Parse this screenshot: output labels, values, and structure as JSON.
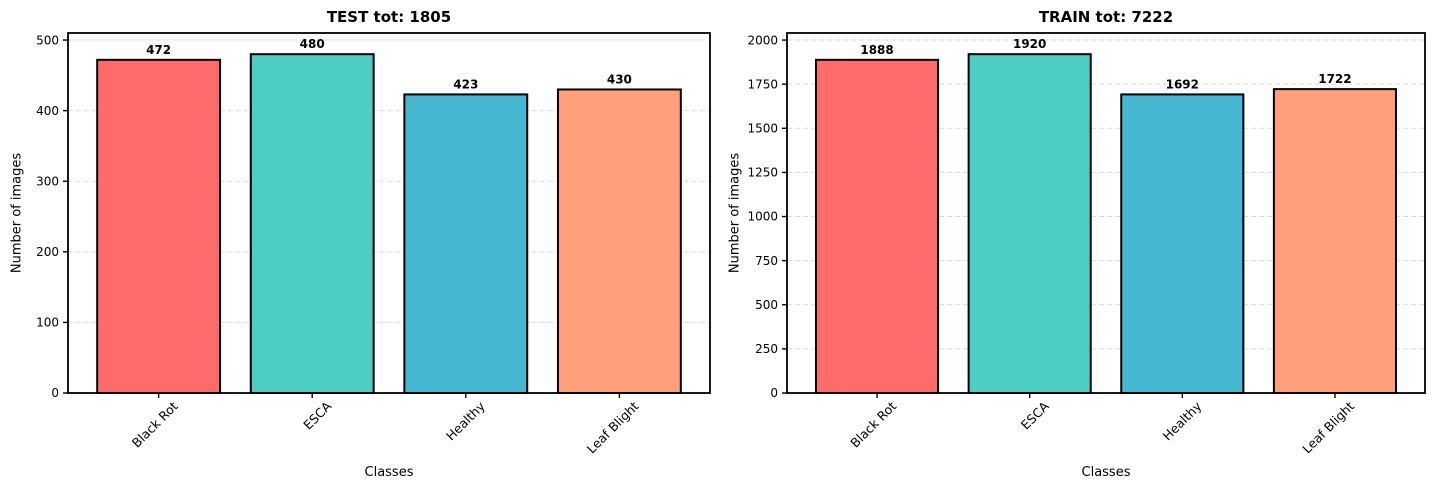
{
  "figure": {
    "background": "#ffffff",
    "bar_edge_color": "#000000",
    "grid_color": "#d9d9d9",
    "text_color": "#000000",
    "bar_colors": [
      "#FF6B6B",
      "#4ECDC4",
      "#45B7D1",
      "#FFA07A"
    ]
  },
  "chart_data": [
    {
      "type": "bar",
      "title": "TEST tot: 1805",
      "total": 1805,
      "categories": [
        "Black Rot",
        "ESCA",
        "Healthy",
        "Leaf Blight"
      ],
      "values": [
        472,
        480,
        423,
        430
      ],
      "bar_labels": [
        "472",
        "480",
        "423",
        "430"
      ],
      "xlabel": "Classes",
      "ylabel": "Number of images",
      "yticks": [
        0,
        100,
        200,
        300,
        400,
        500
      ],
      "ylim": [
        0,
        510
      ],
      "grid": "horizontal-dashed",
      "legend": "none"
    },
    {
      "type": "bar",
      "title": "TRAIN tot: 7222",
      "total": 7222,
      "categories": [
        "Black Rot",
        "ESCA",
        "Healthy",
        "Leaf Blight"
      ],
      "values": [
        1888,
        1920,
        1692,
        1722
      ],
      "bar_labels": [
        "1888",
        "1920",
        "1692",
        "1722"
      ],
      "xlabel": "Classes",
      "ylabel": "Number of images",
      "yticks": [
        0,
        250,
        500,
        750,
        1000,
        1250,
        1500,
        1750,
        2000
      ],
      "ylim": [
        0,
        2040
      ],
      "grid": "horizontal-dashed",
      "legend": "none"
    }
  ]
}
